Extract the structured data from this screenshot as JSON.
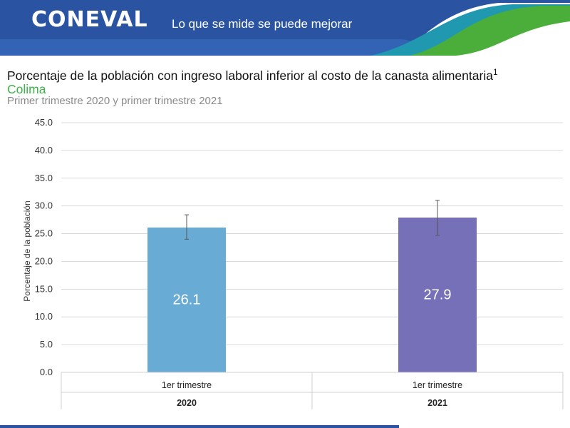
{
  "header": {
    "logo": "CONEVAL",
    "tagline": "Lo que se mide se puede mejorar",
    "colors": {
      "blue": "#2a54a2",
      "green": "#4cae3a",
      "teal": "#1f98b0"
    }
  },
  "chart_data": {
    "type": "bar",
    "title": "Porcentaje de la población con ingreso laboral inferior al costo de la canasta alimentaria",
    "title_sup": "1",
    "subtitle": "Colima",
    "period": "Primer trimestre 2020 y primer trimestre 2021",
    "ylabel": "Porcentaje de la población",
    "ylim": [
      0,
      45
    ],
    "yticks": [
      "0.0",
      "5.0",
      "10.0",
      "15.0",
      "20.0",
      "25.0",
      "30.0",
      "35.0",
      "40.0",
      "45.0"
    ],
    "grid": true,
    "bars": [
      {
        "category": "1er trimestre",
        "group": "2020",
        "value": 26.1,
        "label": "26.1",
        "err_low": 24.0,
        "err_high": 28.4,
        "color": "#68acd6"
      },
      {
        "category": "1er trimestre",
        "group": "2021",
        "value": 27.9,
        "label": "27.9",
        "err_low": 24.7,
        "err_high": 31.0,
        "color": "#7570b8"
      }
    ]
  }
}
